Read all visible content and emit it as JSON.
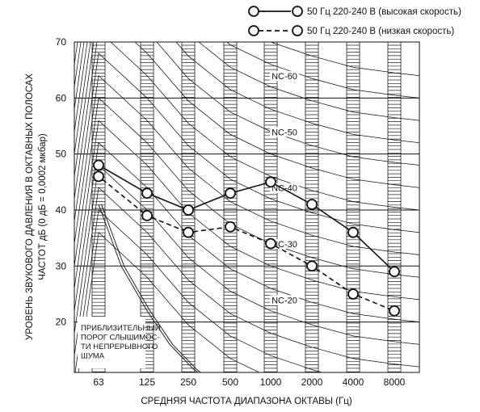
{
  "chart_data": {
    "type": "line",
    "title": "",
    "xlabel": "СРЕДНЯЯ ЧАСТОТА ДИАПАЗОНА ОКТАВЫ (Гц)",
    "ylabel_line1": "УРОВЕНЬ ЗВУКОВОГО ДАВЛЕНИЯ В ОКТАВНЫХ ПОЛОСАХ",
    "ylabel_line2": "ЧАСТОТ дБ (0 дБ = 0,0002 мкбар)",
    "categories": [
      "63",
      "125",
      "250",
      "500",
      "1000",
      "2000",
      "4000",
      "8000"
    ],
    "yticks": [
      "20",
      "30",
      "40",
      "50",
      "60",
      "70"
    ],
    "ylim": [
      11,
      70
    ],
    "grid": true,
    "legend_position": "top-right",
    "series": [
      {
        "name": "50 Гц 220-240 В (высокая скорость)",
        "style": "solid",
        "values": [
          48,
          43,
          40,
          43,
          45,
          41,
          36,
          29
        ]
      },
      {
        "name": "50 Гц 220-240 В (низкая скорость)",
        "style": "dashed",
        "values": [
          46,
          39,
          36,
          37,
          34,
          30,
          25,
          22
        ]
      }
    ],
    "nc_labels": [
      "NC-60",
      "NC-50",
      "NC-40",
      "NC-30",
      "NC-20"
    ],
    "threshold_note": [
      "ПРИБЛИЗИТЕЛЬНЫЙ",
      "ПОРОГ СЛЫШИМОС-",
      "ТИ НЕПРЕРЫВНОГО",
      "ШУМА"
    ]
  }
}
